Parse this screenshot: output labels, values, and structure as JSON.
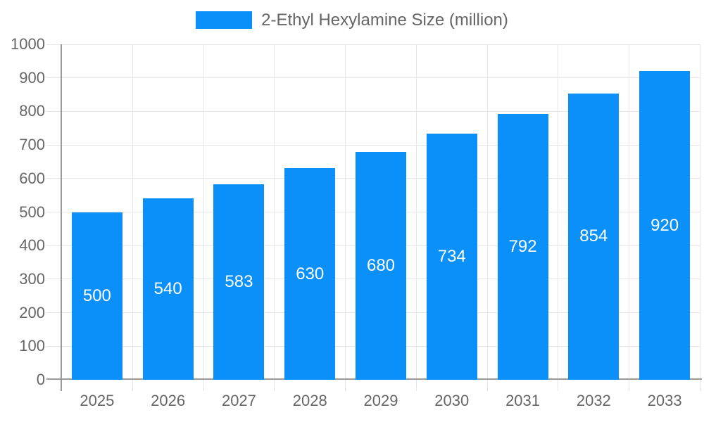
{
  "chart_data": {
    "type": "bar",
    "title": "2-Ethyl Hexylamine Size (million)",
    "categories": [
      "2025",
      "2026",
      "2027",
      "2028",
      "2029",
      "2030",
      "2031",
      "2032",
      "2033"
    ],
    "series": [
      {
        "name": "2-Ethyl Hexylamine Size (million)",
        "values": [
          500,
          540,
          583,
          630,
          680,
          734,
          792,
          854,
          920
        ]
      }
    ],
    "xlabel": "",
    "ylabel": "",
    "ylim": [
      0,
      1000
    ],
    "yticks": [
      0,
      100,
      200,
      300,
      400,
      500,
      600,
      700,
      800,
      900,
      1000
    ],
    "grid": true,
    "legend_position": "top",
    "bar_labels_visible": true,
    "colors": {
      "bar": "#0a90f8",
      "grid": "#e6e6e6",
      "axis": "#9a9a9a",
      "text": "#666666",
      "bar_label": "#ffffff",
      "background": "#ffffff"
    }
  }
}
